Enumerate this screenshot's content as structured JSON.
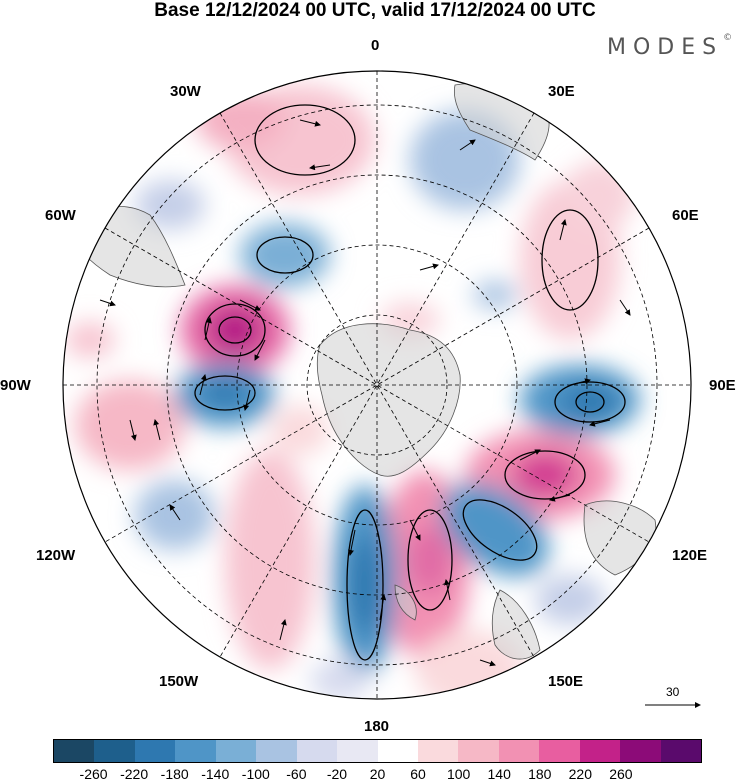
{
  "header": {
    "title": "Base 12/12/2024 00 UTC, valid 17/12/2024 00 UTC",
    "brand": "MODES",
    "brand_mark": "©"
  },
  "map": {
    "projection": "south-polar-stereographic",
    "longitude_labels": {
      "top": "0",
      "top_right": "30E",
      "right_upper": "60E",
      "right": "90E",
      "right_lower": "120E",
      "bottom_right": "150E",
      "bottom": "180",
      "bottom_left": "150W",
      "left_lower": "120W",
      "left": "90W",
      "left_upper": "60W",
      "top_left": "30W"
    },
    "wind_vector_reference": {
      "value": "30"
    }
  },
  "colorbar": {
    "labels": [
      "-260",
      "-220",
      "-180",
      "-140",
      "-100",
      "-60",
      "-20",
      "20",
      "60",
      "100",
      "140",
      "180",
      "220",
      "260"
    ],
    "colors": [
      "#1b4764",
      "#1e5f8c",
      "#2e78b0",
      "#4f95c7",
      "#7aafd6",
      "#a9c3e2",
      "#d6daee",
      "#e8e8f3",
      "#ffffff",
      "#fadadd",
      "#f6b8c6",
      "#f291b3",
      "#e85ea0",
      "#c32289",
      "#8c0b78",
      "#5a0a6c"
    ]
  }
}
